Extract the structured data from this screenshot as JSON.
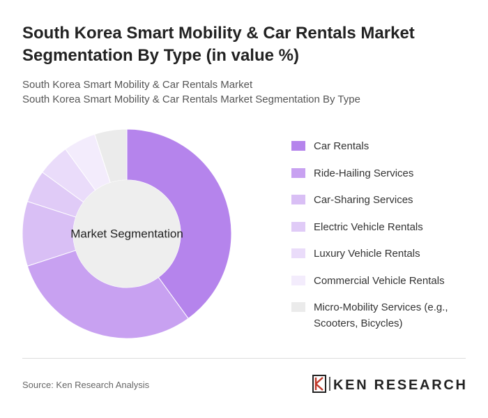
{
  "chart_data": {
    "type": "donut",
    "title": "South Korea Smart Mobility & Car Rentals Market Segmentation By Type (in value %)",
    "subtitle": [
      "South Korea Smart Mobility & Car Rentals Market",
      "South Korea Smart Mobility & Car Rentals Market Segmentation By Type"
    ],
    "center_label": "Market Segmentation",
    "categories": [
      "Car Rentals",
      "Ride-Hailing Services",
      "Car-Sharing Services",
      "Electric Vehicle Rentals",
      "Luxury Vehicle Rentals",
      "Commercial Vehicle Rentals",
      "Micro-Mobility Services (e.g., Scooters, Bicycles)"
    ],
    "values": [
      40,
      30,
      10,
      5,
      5,
      5,
      5
    ],
    "colors": [
      "#b584ec",
      "#c8a1f1",
      "#d9bff5",
      "#e0cbf7",
      "#eadcfa",
      "#f3ecfc",
      "#ebebeb"
    ],
    "source": "Source: Ken Research Analysis",
    "logo": "KEN RESEARCH"
  }
}
